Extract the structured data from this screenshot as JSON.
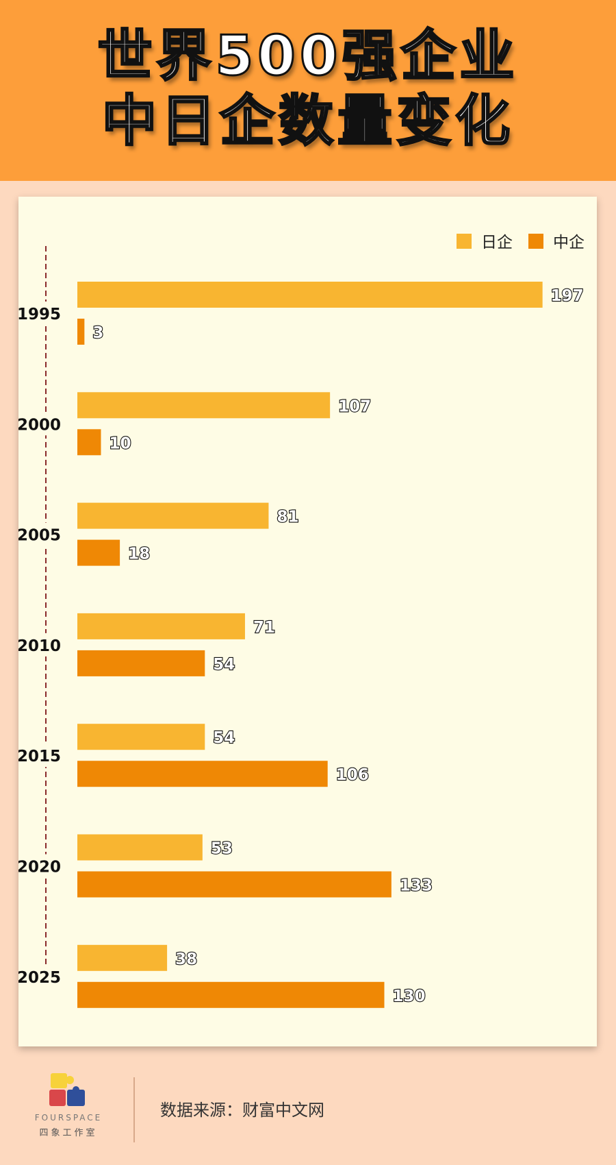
{
  "header": {
    "title_line1": "世界500强企业",
    "title_line2": "中日企数量变化"
  },
  "footer": {
    "source": "数据来源：财富中文网",
    "brand": "FOURSPACE",
    "brand_cn": "四象工作室"
  },
  "colors": {
    "header_bg": "#fd9e3a",
    "page_bg": "#fdd9bf",
    "card_bg": "#fefce5",
    "japan": "#f8b531",
    "china": "#ef8805"
  },
  "chart_data": {
    "type": "bar",
    "orientation": "horizontal",
    "categories": [
      "1995",
      "2000",
      "2005",
      "2010",
      "2015",
      "2020",
      "2025"
    ],
    "series": [
      {
        "name": "日企",
        "values": [
          197,
          107,
          81,
          71,
          54,
          53,
          38
        ]
      },
      {
        "name": "中企",
        "values": [
          3,
          10,
          18,
          54,
          106,
          133,
          130
        ]
      }
    ],
    "legend_position": "top-right",
    "data_labels": true,
    "grid": false
  }
}
